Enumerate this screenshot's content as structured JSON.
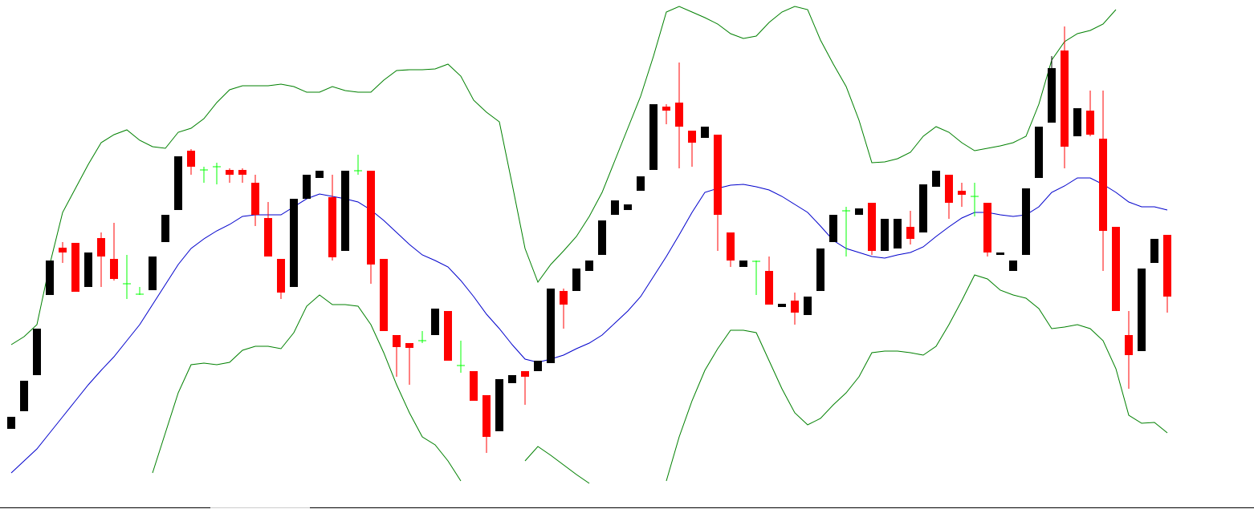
{
  "chart_data": {
    "type": "candlestick",
    "ylim": [
      0,
      635
    ],
    "up_color": "#000000",
    "down_color": "#ff0000",
    "doji_color": "#00ff00",
    "open": [
      100,
      122,
      167,
      267,
      326,
      332,
      277,
      338,
      312,
      281,
      268,
      273,
      333,
      373,
      447,
      423,
      427,
      423,
      423,
      407,
      363,
      312,
      277,
      387,
      413,
      389,
      322,
      422,
      422,
      312,
      217,
      207,
      210,
      217,
      247,
      179,
      172,
      142,
      97,
      157,
      172,
      172,
      182,
      272,
      272,
      297,
      317,
      367,
      373,
      397,
      423,
      502,
      507,
      472,
      463,
      467,
      345,
      302,
      309,
      297,
      252,
      260,
      242,
      272,
      333,
      372,
      367,
      382,
      322,
      325,
      352,
      345,
      402,
      417,
      397,
      390,
      382,
      317,
      297,
      317,
      413,
      482,
      572,
      465,
      497,
      462,
      352,
      217,
      197,
      307,
      342
    ],
    "high": [
      115,
      160,
      225,
      310,
      333,
      332,
      320,
      345,
      357,
      317,
      277,
      315,
      367,
      440,
      449,
      427,
      432,
      425,
      425,
      417,
      383,
      312,
      387,
      417,
      422,
      417,
      422,
      442,
      422,
      312,
      217,
      207,
      222,
      250,
      247,
      210,
      172,
      142,
      162,
      167,
      172,
      185,
      275,
      275,
      300,
      310,
      360,
      385,
      380,
      415,
      505,
      505,
      557,
      472,
      477,
      467,
      345,
      310,
      310,
      315,
      256,
      270,
      265,
      325,
      367,
      377,
      375,
      382,
      362,
      362,
      372,
      405,
      422,
      417,
      407,
      407,
      382,
      320,
      310,
      400,
      477,
      565,
      602,
      500,
      522,
      522,
      352,
      247,
      300,
      337,
      342
    ],
    "low": [
      100,
      122,
      167,
      267,
      307,
      271,
      277,
      277,
      285,
      262,
      267,
      273,
      333,
      373,
      417,
      407,
      405,
      407,
      407,
      353,
      315,
      262,
      277,
      387,
      413,
      310,
      322,
      417,
      281,
      222,
      165,
      155,
      207,
      217,
      185,
      170,
      135,
      70,
      97,
      157,
      130,
      172,
      182,
      225,
      272,
      297,
      317,
      367,
      373,
      397,
      423,
      480,
      425,
      427,
      463,
      322,
      302,
      302,
      267,
      255,
      252,
      230,
      242,
      272,
      333,
      315,
      367,
      317,
      322,
      325,
      330,
      345,
      402,
      362,
      377,
      365,
      315,
      317,
      297,
      317,
      413,
      482,
      425,
      465,
      465,
      297,
      247,
      150,
      197,
      307,
      245
    ],
    "close": [
      115,
      160,
      225,
      310,
      320,
      271,
      320,
      315,
      287,
      281,
      268,
      315,
      367,
      440,
      427,
      423,
      427,
      417,
      417,
      367,
      315,
      270,
      387,
      417,
      422,
      314,
      422,
      422,
      305,
      222,
      202,
      201,
      210,
      250,
      185,
      179,
      135,
      90,
      162,
      167,
      165,
      185,
      275,
      255,
      300,
      310,
      360,
      385,
      380,
      415,
      505,
      497,
      477,
      457,
      477,
      367,
      310,
      310,
      309,
      255,
      256,
      245,
      265,
      325,
      367,
      372,
      375,
      322,
      362,
      362,
      337,
      405,
      422,
      382,
      392,
      390,
      320,
      320,
      310,
      400,
      477,
      550,
      452,
      500,
      467,
      347,
      247,
      192,
      300,
      337,
      265
    ],
    "overlays": [
      {
        "color": "#0000cc",
        "values": [
          45,
          60,
          75,
          95,
          115,
          135,
          155,
          173,
          190,
          210,
          230,
          255,
          280,
          305,
          325,
          337,
          347,
          355,
          365,
          367,
          367,
          367,
          377,
          387,
          393,
          390,
          387,
          383,
          373,
          360,
          345,
          330,
          317,
          310,
          302,
          285,
          265,
          243,
          225,
          205,
          187,
          183,
          187,
          192,
          200,
          207,
          217,
          232,
          247,
          265,
          290,
          315,
          342,
          370,
          395,
          400,
          404,
          405,
          402,
          398,
          390,
          380,
          370,
          353,
          335,
          325,
          320,
          315,
          313,
          317,
          320,
          327,
          340,
          352,
          363,
          370,
          370,
          367,
          365,
          367,
          377,
          395,
          403,
          413,
          413,
          405,
          395,
          383,
          377,
          377,
          373
        ]
      },
      {
        "color": "#008000",
        "values": [
          205,
          215,
          230,
          305,
          370,
          400,
          430,
          457,
          467,
          473,
          460,
          452,
          450,
          470,
          475,
          487,
          507,
          523,
          528,
          528,
          528,
          530,
          527,
          520,
          520,
          527,
          522,
          520,
          520,
          535,
          547,
          548,
          548,
          549,
          555,
          540,
          510,
          495,
          483,
          405,
          325,
          283,
          305,
          322,
          340,
          365,
          395,
          435,
          475,
          515,
          565,
          620,
          627,
          620,
          613,
          605,
          593,
          587,
          590,
          607,
          620,
          627,
          623,
          585,
          555,
          527,
          485,
          432,
          433,
          437,
          445,
          465,
          477,
          470,
          457,
          447,
          450,
          453,
          457,
          465,
          505,
          560,
          583,
          593,
          597,
          605,
          623,
          null,
          null,
          null,
          null
        ]
      },
      {
        "color": "#008000",
        "values": [
          null,
          null,
          null,
          null,
          null,
          null,
          null,
          null,
          null,
          null,
          null,
          45,
          95,
          145,
          180,
          182,
          180,
          183,
          198,
          203,
          203,
          200,
          220,
          253,
          267,
          255,
          255,
          253,
          230,
          195,
          155,
          120,
          90,
          80,
          60,
          35,
          null,
          null,
          null,
          null,
          60,
          78,
          67,
          55,
          43,
          32,
          null,
          null,
          null,
          null,
          null,
          35,
          90,
          135,
          173,
          200,
          223,
          223,
          220,
          185,
          150,
          120,
          105,
          113,
          130,
          145,
          165,
          195,
          197,
          197,
          195,
          192,
          203,
          230,
          260,
          292,
          287,
          273,
          267,
          263,
          250,
          225,
          227,
          230,
          225,
          210,
          175,
          117,
          107,
          108,
          95
        ]
      }
    ]
  }
}
